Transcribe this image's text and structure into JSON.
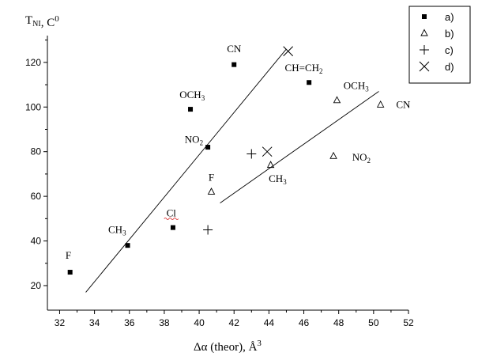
{
  "chart_data": {
    "type": "scatter",
    "title": "",
    "xlabel": "Δα (theor), Å³",
    "ylabel": "T_NI, C⁰",
    "xlim": [
      31.3,
      52
    ],
    "ylim": [
      9,
      132
    ],
    "x_ticks": [
      "32",
      "34",
      "36",
      "38",
      "40",
      "42",
      "44",
      "46",
      "48",
      "50",
      "52"
    ],
    "y_ticks": [
      "20",
      "40",
      "60",
      "80",
      "100",
      "120"
    ],
    "legend_position": "top-right",
    "series": [
      {
        "name": "a)",
        "marker": "square",
        "points": [
          {
            "x": 32.6,
            "y": 26
          },
          {
            "x": 35.9,
            "y": 38
          },
          {
            "x": 38.5,
            "y": 46
          },
          {
            "x": 39.5,
            "y": 99
          },
          {
            "x": 40.5,
            "y": 82
          },
          {
            "x": 42.0,
            "y": 119
          },
          {
            "x": 46.3,
            "y": 111
          }
        ]
      },
      {
        "name": "b)",
        "marker": "triangle",
        "points": [
          {
            "x": 40.7,
            "y": 62
          },
          {
            "x": 44.1,
            "y": 74
          },
          {
            "x": 47.7,
            "y": 78
          },
          {
            "x": 47.9,
            "y": 103
          },
          {
            "x": 50.4,
            "y": 101
          }
        ]
      },
      {
        "name": "c)",
        "marker": "plus",
        "points": [
          {
            "x": 40.5,
            "y": 45
          },
          {
            "x": 43.0,
            "y": 79
          }
        ]
      },
      {
        "name": "d)",
        "marker": "x",
        "points": [
          {
            "x": 43.9,
            "y": 80
          },
          {
            "x": 45.1,
            "y": 125
          }
        ]
      }
    ],
    "fit_lines": [
      {
        "from": {
          "x": 33.5,
          "y": 17
        },
        "to": {
          "x": 45.0,
          "y": 126
        }
      },
      {
        "from": {
          "x": 41.2,
          "y": 57
        },
        "to": {
          "x": 50.3,
          "y": 107
        }
      }
    ],
    "annotations": [
      {
        "text": "F",
        "x": 32.5,
        "y": 32
      },
      {
        "text": "CH₃",
        "x": 35.3,
        "y": 43.5
      },
      {
        "text": "Cl",
        "x": 38.4,
        "y": 51
      },
      {
        "text": "OCH₃",
        "x": 39.6,
        "y": 104
      },
      {
        "text": "NO₂",
        "x": 39.7,
        "y": 84
      },
      {
        "text": "CN",
        "x": 42.0,
        "y": 124.5
      },
      {
        "text": "CH=CH₂",
        "x": 46.0,
        "y": 116
      },
      {
        "text": "F",
        "x": 40.7,
        "y": 67
      },
      {
        "text": "CH₃",
        "x": 44.5,
        "y": 66.5
      },
      {
        "text": "OCH₃",
        "x": 49.0,
        "y": 108
      },
      {
        "text": "NO₂",
        "x": 49.3,
        "y": 76
      },
      {
        "text": "CN",
        "x": 51.7,
        "y": 99.5
      }
    ]
  }
}
